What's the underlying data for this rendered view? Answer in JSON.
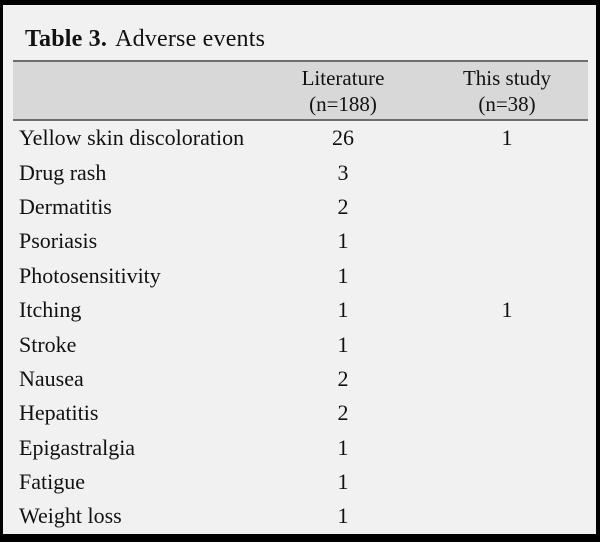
{
  "table": {
    "title_bold": "Table 3.",
    "title_rest": "Adverse events",
    "columns": [
      {
        "label": "Literature",
        "sub": "(n=188)"
      },
      {
        "label": "This study",
        "sub": "(n=38)"
      }
    ],
    "rows": [
      {
        "event": "Yellow skin discoloration",
        "literature": "26",
        "this_study": "1"
      },
      {
        "event": "Drug rash",
        "literature": "3",
        "this_study": ""
      },
      {
        "event": "Dermatitis",
        "literature": "2",
        "this_study": ""
      },
      {
        "event": "Psoriasis",
        "literature": "1",
        "this_study": ""
      },
      {
        "event": "Photosensitivity",
        "literature": "1",
        "this_study": ""
      },
      {
        "event": "Itching",
        "literature": "1",
        "this_study": "1"
      },
      {
        "event": "Stroke",
        "literature": "1",
        "this_study": ""
      },
      {
        "event": "Nausea",
        "literature": "2",
        "this_study": ""
      },
      {
        "event": "Hepatitis",
        "literature": "2",
        "this_study": ""
      },
      {
        "event": "Epigastralgia",
        "literature": "1",
        "this_study": ""
      },
      {
        "event": "Fatigue",
        "literature": "1",
        "this_study": ""
      },
      {
        "event": "Weight loss",
        "literature": "1",
        "this_study": ""
      }
    ],
    "colors": {
      "background": "#f1f1f1",
      "header_band": "#d8d8d8",
      "rule": "#6e6e6e",
      "frame": "#000000"
    }
  }
}
